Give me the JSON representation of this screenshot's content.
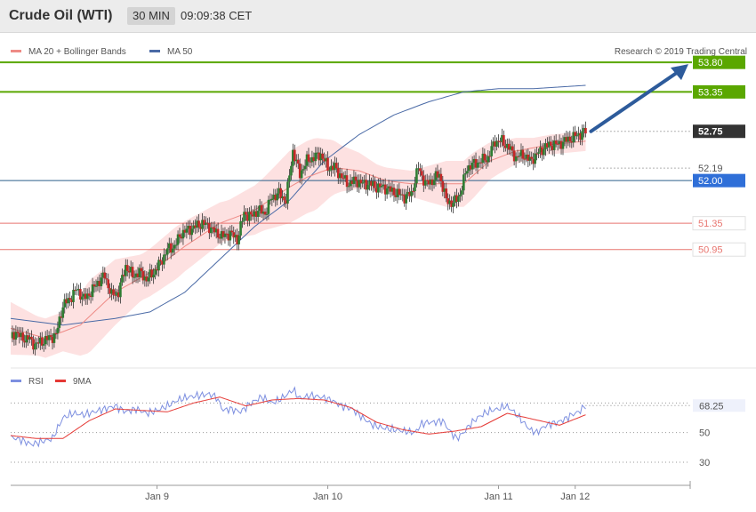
{
  "header": {
    "title": "Crude Oil (WTI)",
    "timeframe": "30 MIN",
    "time": "09:09:38 CET"
  },
  "legend": {
    "ma20": "MA 20 + Bollinger Bands",
    "ma50": "MA 50",
    "rsi": "RSI",
    "ma9": "9MA"
  },
  "copyright": "Research © 2019 Trading Central",
  "colors": {
    "green": "#5aa700",
    "blue": "#2f6fd8",
    "red": "#e8756f",
    "candle_up": "#2e7d32",
    "candle_down": "#c62828",
    "band": "#fde1e1",
    "ma20": "#ee8b86",
    "ma50": "#4a6aa6",
    "rsi": "#7d8fe0",
    "ma9": "#e53935",
    "arrow": "#2d5b9b"
  },
  "chart_data": [
    {
      "type": "line",
      "name": "price",
      "ylim": [
        49.2,
        54.1
      ],
      "xlim": [
        0,
        390
      ],
      "x_ticks": [
        {
          "label": "Jan 9",
          "x": 84
        },
        {
          "label": "Jan 10",
          "x": 182
        },
        {
          "label": "Jan 11",
          "x": 280
        },
        {
          "label": "Jan 12",
          "x": 324
        }
      ],
      "levels": [
        {
          "value": 53.8,
          "label": "53.80",
          "style": "resistance"
        },
        {
          "value": 53.35,
          "label": "53.35",
          "style": "resistance"
        },
        {
          "value": 52.75,
          "label": "52.75",
          "style": "last"
        },
        {
          "value": 52.19,
          "label": "52.19",
          "style": "pivot"
        },
        {
          "value": 52.0,
          "label": "52.00",
          "style": "support"
        },
        {
          "value": 51.35,
          "label": "51.35",
          "style": "level"
        },
        {
          "value": 50.95,
          "label": "50.95",
          "style": "level"
        }
      ],
      "close_anchors": [
        [
          0,
          49.6
        ],
        [
          3,
          49.7
        ],
        [
          6,
          49.6
        ],
        [
          10,
          49.6
        ],
        [
          14,
          49.5
        ],
        [
          18,
          49.55
        ],
        [
          22,
          49.6
        ],
        [
          26,
          49.65
        ],
        [
          30,
          50.1
        ],
        [
          34,
          50.2
        ],
        [
          38,
          50.35
        ],
        [
          42,
          50.2
        ],
        [
          46,
          50.3
        ],
        [
          50,
          50.45
        ],
        [
          54,
          50.55
        ],
        [
          58,
          50.25
        ],
        [
          62,
          50.3
        ],
        [
          66,
          50.7
        ],
        [
          70,
          50.55
        ],
        [
          74,
          50.6
        ],
        [
          78,
          50.5
        ],
        [
          82,
          50.6
        ],
        [
          86,
          50.75
        ],
        [
          90,
          50.95
        ],
        [
          94,
          51.0
        ],
        [
          98,
          51.2
        ],
        [
          102,
          51.25
        ],
        [
          106,
          51.3
        ],
        [
          110,
          51.35
        ],
        [
          114,
          51.3
        ],
        [
          118,
          51.2
        ],
        [
          122,
          51.15
        ],
        [
          126,
          51.2
        ],
        [
          130,
          51.1
        ],
        [
          134,
          51.5
        ],
        [
          138,
          51.45
        ],
        [
          142,
          51.55
        ],
        [
          146,
          51.5
        ],
        [
          150,
          51.75
        ],
        [
          154,
          51.8
        ],
        [
          158,
          51.7
        ],
        [
          162,
          52.45
        ],
        [
          166,
          52.1
        ],
        [
          170,
          52.3
        ],
        [
          174,
          52.35
        ],
        [
          178,
          52.4
        ],
        [
          182,
          52.2
        ],
        [
          186,
          52.2
        ],
        [
          190,
          52.05
        ],
        [
          194,
          51.95
        ],
        [
          198,
          52.0
        ],
        [
          202,
          51.95
        ],
        [
          206,
          51.95
        ],
        [
          210,
          51.9
        ],
        [
          214,
          51.9
        ],
        [
          218,
          51.85
        ],
        [
          222,
          51.8
        ],
        [
          226,
          51.75
        ],
        [
          230,
          51.8
        ],
        [
          234,
          52.2
        ],
        [
          238,
          51.95
        ],
        [
          242,
          52.0
        ],
        [
          246,
          52.1
        ],
        [
          250,
          51.7
        ],
        [
          254,
          51.65
        ],
        [
          258,
          51.8
        ],
        [
          262,
          52.2
        ],
        [
          266,
          52.25
        ],
        [
          270,
          52.3
        ],
        [
          274,
          52.35
        ],
        [
          278,
          52.6
        ],
        [
          282,
          52.6
        ],
        [
          286,
          52.5
        ],
        [
          290,
          52.35
        ],
        [
          294,
          52.4
        ],
        [
          298,
          52.3
        ],
        [
          302,
          52.4
        ],
        [
          306,
          52.5
        ],
        [
          310,
          52.55
        ],
        [
          314,
          52.55
        ],
        [
          318,
          52.6
        ],
        [
          322,
          52.65
        ],
        [
          326,
          52.7
        ],
        [
          330,
          52.75
        ]
      ],
      "ma50_anchors": [
        [
          0,
          49.9
        ],
        [
          30,
          49.8
        ],
        [
          60,
          49.9
        ],
        [
          80,
          50.0
        ],
        [
          100,
          50.3
        ],
        [
          120,
          50.8
        ],
        [
          140,
          51.3
        ],
        [
          160,
          51.7
        ],
        [
          180,
          52.3
        ],
        [
          200,
          52.7
        ],
        [
          220,
          53.0
        ],
        [
          240,
          53.2
        ],
        [
          260,
          53.35
        ],
        [
          280,
          53.4
        ],
        [
          300,
          53.4
        ],
        [
          330,
          53.45
        ]
      ],
      "ma20_anchors": [
        [
          0,
          49.75
        ],
        [
          20,
          49.6
        ],
        [
          40,
          49.8
        ],
        [
          60,
          50.3
        ],
        [
          80,
          50.6
        ],
        [
          100,
          51.0
        ],
        [
          120,
          51.35
        ],
        [
          140,
          51.55
        ],
        [
          160,
          51.9
        ],
        [
          170,
          52.05
        ],
        [
          185,
          52.2
        ],
        [
          200,
          52.15
        ],
        [
          215,
          52.0
        ],
        [
          230,
          51.95
        ],
        [
          245,
          51.95
        ],
        [
          260,
          51.95
        ],
        [
          275,
          52.3
        ],
        [
          290,
          52.45
        ],
        [
          310,
          52.55
        ],
        [
          330,
          52.6
        ]
      ],
      "band_width_anchors": [
        [
          0,
          0.4
        ],
        [
          15,
          0.3
        ],
        [
          30,
          0.3
        ],
        [
          45,
          0.55
        ],
        [
          60,
          0.5
        ],
        [
          75,
          0.35
        ],
        [
          95,
          0.4
        ],
        [
          110,
          0.35
        ],
        [
          125,
          0.3
        ],
        [
          145,
          0.4
        ],
        [
          160,
          0.55
        ],
        [
          175,
          0.55
        ],
        [
          190,
          0.35
        ],
        [
          210,
          0.2
        ],
        [
          230,
          0.2
        ],
        [
          250,
          0.35
        ],
        [
          265,
          0.35
        ],
        [
          280,
          0.25
        ],
        [
          300,
          0.15
        ],
        [
          330,
          0.15
        ]
      ]
    },
    {
      "type": "line",
      "name": "rsi",
      "ylim": [
        15,
        90
      ],
      "y_ticks": [
        30,
        50
      ],
      "last_value_label": "68.25",
      "series": [
        {
          "name": "RSI",
          "anchors": [
            [
              0,
              47
            ],
            [
              6,
              45
            ],
            [
              12,
              42
            ],
            [
              18,
              44
            ],
            [
              24,
              46
            ],
            [
              30,
              60
            ],
            [
              36,
              63
            ],
            [
              42,
              62
            ],
            [
              48,
              64
            ],
            [
              54,
              66
            ],
            [
              60,
              68
            ],
            [
              66,
              64
            ],
            [
              72,
              66
            ],
            [
              78,
              63
            ],
            [
              84,
              65
            ],
            [
              90,
              68
            ],
            [
              96,
              72
            ],
            [
              102,
              74
            ],
            [
              108,
              75
            ],
            [
              114,
              76
            ],
            [
              118,
              74
            ],
            [
              122,
              65
            ],
            [
              126,
              66
            ],
            [
              132,
              64
            ],
            [
              138,
              70
            ],
            [
              144,
              74
            ],
            [
              150,
              70
            ],
            [
              154,
              72
            ],
            [
              158,
              75
            ],
            [
              162,
              79
            ],
            [
              166,
              73
            ],
            [
              172,
              75
            ],
            [
              178,
              74
            ],
            [
              184,
              72
            ],
            [
              190,
              68
            ],
            [
              196,
              66
            ],
            [
              202,
              60
            ],
            [
              208,
              55
            ],
            [
              214,
              53
            ],
            [
              220,
              52
            ],
            [
              226,
              51
            ],
            [
              232,
              50
            ],
            [
              236,
              56
            ],
            [
              240,
              57
            ],
            [
              244,
              57
            ],
            [
              248,
              58
            ],
            [
              252,
              51
            ],
            [
              256,
              46
            ],
            [
              260,
              50
            ],
            [
              264,
              56
            ],
            [
              268,
              60
            ],
            [
              272,
              63
            ],
            [
              276,
              65
            ],
            [
              280,
              66
            ],
            [
              284,
              68
            ],
            [
              288,
              65
            ],
            [
              292,
              60
            ],
            [
              298,
              52
            ],
            [
              302,
              50
            ],
            [
              306,
              54
            ],
            [
              310,
              56
            ],
            [
              314,
              57
            ],
            [
              318,
              59
            ],
            [
              322,
              62
            ],
            [
              326,
              64
            ],
            [
              330,
              68.25
            ]
          ]
        },
        {
          "name": "9MA",
          "anchors": [
            [
              0,
              48
            ],
            [
              15,
              46
            ],
            [
              30,
              46
            ],
            [
              45,
              58
            ],
            [
              60,
              66
            ],
            [
              75,
              65
            ],
            [
              90,
              64
            ],
            [
              105,
              70
            ],
            [
              120,
              74
            ],
            [
              135,
              68
            ],
            [
              150,
              72
            ],
            [
              165,
              73
            ],
            [
              180,
              72
            ],
            [
              195,
              67
            ],
            [
              210,
              57
            ],
            [
              225,
              52
            ],
            [
              240,
              49
            ],
            [
              255,
              51
            ],
            [
              270,
              54
            ],
            [
              285,
              63
            ],
            [
              300,
              59
            ],
            [
              315,
              55
            ],
            [
              330,
              62
            ]
          ]
        }
      ]
    }
  ]
}
